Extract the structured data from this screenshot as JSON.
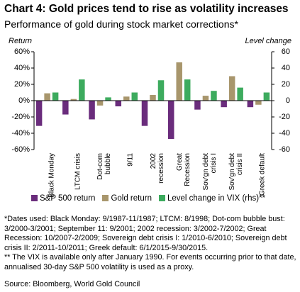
{
  "chart_data": {
    "type": "bar",
    "title": "Chart 4: Gold prices tend to rise as volatility increases",
    "subtitle": "Performance of gold during stock market corrections*",
    "y_label": "Return",
    "y2_label": "Level change",
    "categories": [
      "Black Monday",
      "LTCM crisis",
      "Dot-com bubble",
      "9/11",
      "2002 recession",
      "Great Recession",
      "Sov'gn debt crisis I",
      "Sov'gn debt crisis II",
      "Greek default"
    ],
    "series": [
      {
        "name": "S&P 500 return",
        "color": "#6a2c7c",
        "values": [
          -31,
          -17,
          -23,
          -7,
          -31,
          -47,
          -11,
          -8,
          -8
        ]
      },
      {
        "name": "Gold return",
        "color": "#a8966c",
        "values": [
          9,
          2,
          -6,
          5,
          7,
          47,
          6,
          30,
          -5
        ]
      },
      {
        "name": "Level change in VIX (rhs)**",
        "color": "#3dab5e",
        "axis": "y2",
        "values": [
          10,
          26,
          4,
          10,
          25,
          26,
          12,
          16,
          10
        ]
      }
    ],
    "ylim": [
      -60,
      60
    ],
    "yticks": [
      {
        "value": 60,
        "label": "60%"
      },
      {
        "value": 40,
        "label": "40%"
      },
      {
        "value": 20,
        "label": "20%"
      },
      {
        "value": 0,
        "label": "0%"
      },
      {
        "value": -20,
        "label": "-20%"
      },
      {
        "value": -40,
        "label": "-40%"
      },
      {
        "value": -60,
        "label": "-60%"
      }
    ],
    "y2lim": [
      -60,
      60
    ],
    "y2ticks": [
      60,
      40,
      20,
      0,
      -20,
      -40,
      -60
    ],
    "notes": [
      "*Dates used: Black Monday: 9/1987-11/1987; LTCM: 8/1998; Dot-com bubble bust: 3/2000-3/2001; September 11: 9/2001; 2002 recession: 3/2002-7/2002; Great Recession: 10/2007-2/2009; Sovereign debt crisis I: 1/2010-6/2010; Sovereign debt crisis II: 2/2011-10/2011; Greek default: 6/1/2015-9/30/2015.",
      "** The VIX is available only after January 1990. For events occurring prior to that date, annualised 30-day S&P 500 volatility is used as a proxy."
    ],
    "source": "Source: Bloomberg, World Gold Council"
  }
}
